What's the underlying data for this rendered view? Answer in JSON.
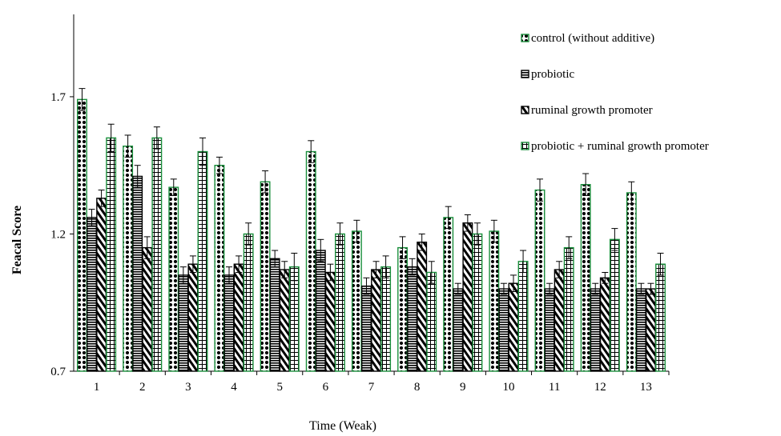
{
  "chart_data": {
    "type": "bar",
    "xlabel": "Time  (Weak)",
    "ylabel": "Feacal Score",
    "ylim": [
      0.7,
      2.0
    ],
    "yticks": [
      "0.7",
      "1.2",
      "1.7"
    ],
    "grid": false,
    "legend_position": "top-right",
    "categories": [
      "1",
      "2",
      "3",
      "4",
      "5",
      "6",
      "7",
      "8",
      "9",
      "10",
      "11",
      "12",
      "13"
    ],
    "series": [
      {
        "name": "control (without additive)",
        "pattern": "dots",
        "color": "#1a8f3c",
        "values": [
          1.69,
          1.52,
          1.37,
          1.45,
          1.39,
          1.5,
          1.21,
          1.15,
          1.26,
          1.21,
          1.36,
          1.38,
          1.35
        ],
        "errors": [
          0.04,
          0.04,
          0.03,
          0.03,
          0.04,
          0.04,
          0.04,
          0.04,
          0.04,
          0.04,
          0.04,
          0.04,
          0.04
        ]
      },
      {
        "name": "probiotic",
        "pattern": "horizontal",
        "color": "#000000",
        "values": [
          1.26,
          1.41,
          1.05,
          1.05,
          1.11,
          1.14,
          1.01,
          1.08,
          1.0,
          1.0,
          1.0,
          1.0,
          1.0
        ],
        "errors": [
          0.03,
          0.04,
          0.03,
          0.03,
          0.03,
          0.04,
          0.03,
          0.03,
          0.02,
          0.02,
          0.02,
          0.02,
          0.02
        ]
      },
      {
        "name": "ruminal growth promoter",
        "pattern": "diagonal",
        "color": "#000000",
        "values": [
          1.33,
          1.15,
          1.09,
          1.09,
          1.07,
          1.06,
          1.07,
          1.17,
          1.24,
          1.02,
          1.07,
          1.04,
          1.0
        ],
        "errors": [
          0.03,
          0.04,
          0.03,
          0.03,
          0.03,
          0.03,
          0.03,
          0.03,
          0.03,
          0.03,
          0.03,
          0.02,
          0.02
        ]
      },
      {
        "name": "probiotic + ruminal growth promoter",
        "pattern": "grid",
        "color": "#1a8f3c",
        "values": [
          1.55,
          1.55,
          1.5,
          1.2,
          1.08,
          1.2,
          1.08,
          1.06,
          1.2,
          1.1,
          1.15,
          1.18,
          1.09
        ],
        "errors": [
          0.05,
          0.04,
          0.05,
          0.04,
          0.05,
          0.04,
          0.04,
          0.04,
          0.04,
          0.04,
          0.04,
          0.04,
          0.04
        ]
      }
    ]
  }
}
